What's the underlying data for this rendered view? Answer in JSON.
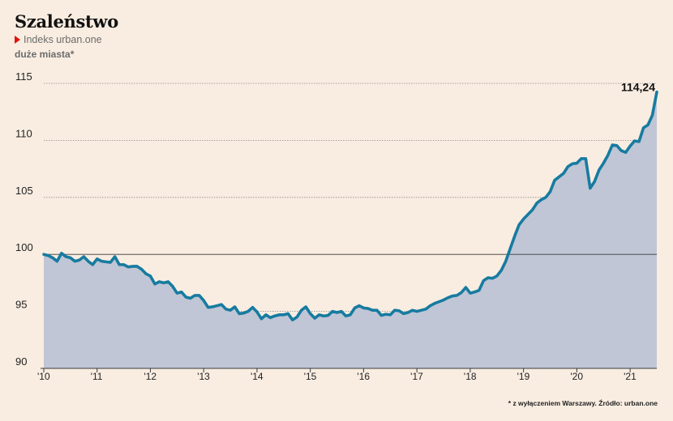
{
  "header": {
    "title": "Szaleństwo",
    "subtitle": "Indeks urban.one",
    "note": "duże miasta*"
  },
  "footnote": "* z wyłączeniem Warszawy. Źródło: urban.one",
  "colors": {
    "background": "#f9ede1",
    "line": "#177ba0",
    "area": "#c0c6d5",
    "accent": "#e3120b"
  },
  "chart_data": {
    "type": "area",
    "ylim": [
      90,
      115
    ],
    "yticks": [
      "90",
      "95",
      "100",
      "105",
      "110",
      "115"
    ],
    "xticks": [
      "'10",
      "'11",
      "'12",
      "'13",
      "'14",
      "'15",
      "'16",
      "'17",
      "'18",
      "'19",
      "'20",
      "'21"
    ],
    "x_start": "2010-01",
    "x_end": "2021-07",
    "baseline": 100,
    "end_label": "114,24",
    "series": [
      {
        "values": [
          100.0,
          99.9,
          99.7,
          99.4,
          100.1,
          99.8,
          99.7,
          99.4,
          99.5,
          99.8,
          99.4,
          99.1,
          99.6,
          99.4,
          99.35,
          99.3,
          99.8,
          99.1,
          99.1,
          98.9,
          98.95,
          98.95,
          98.7,
          98.3,
          98.1,
          97.4,
          97.6,
          97.5,
          97.6,
          97.2,
          96.6,
          96.7,
          96.25,
          96.15,
          96.4,
          96.4,
          95.95,
          95.35,
          95.4,
          95.5,
          95.6,
          95.2,
          95.1,
          95.4,
          94.8,
          94.85,
          95.0,
          95.35,
          94.95,
          94.35,
          94.7,
          94.45,
          94.6,
          94.7,
          94.7,
          94.8,
          94.25,
          94.5,
          95.1,
          95.4,
          94.8,
          94.4,
          94.7,
          94.6,
          94.65,
          95.0,
          94.9,
          95.0,
          94.6,
          94.7,
          95.3,
          95.5,
          95.3,
          95.25,
          95.1,
          95.1,
          94.65,
          94.75,
          94.7,
          95.1,
          95.05,
          94.8,
          94.9,
          95.1,
          95.0,
          95.1,
          95.2,
          95.5,
          95.7,
          95.85,
          96.0,
          96.2,
          96.35,
          96.4,
          96.65,
          97.1,
          96.6,
          96.7,
          96.85,
          97.7,
          97.95,
          97.9,
          98.1,
          98.6,
          99.4,
          100.5,
          101.6,
          102.6,
          103.1,
          103.5,
          103.9,
          104.5,
          104.8,
          105.0,
          105.5,
          106.5,
          106.8,
          107.1,
          107.7,
          107.95,
          108.0,
          108.4,
          108.4,
          105.8,
          106.4,
          107.4,
          108.0,
          108.7,
          109.6,
          109.55,
          109.1,
          108.95,
          109.5,
          109.95,
          109.9,
          111.1,
          111.35,
          112.2,
          114.24
        ]
      }
    ]
  }
}
